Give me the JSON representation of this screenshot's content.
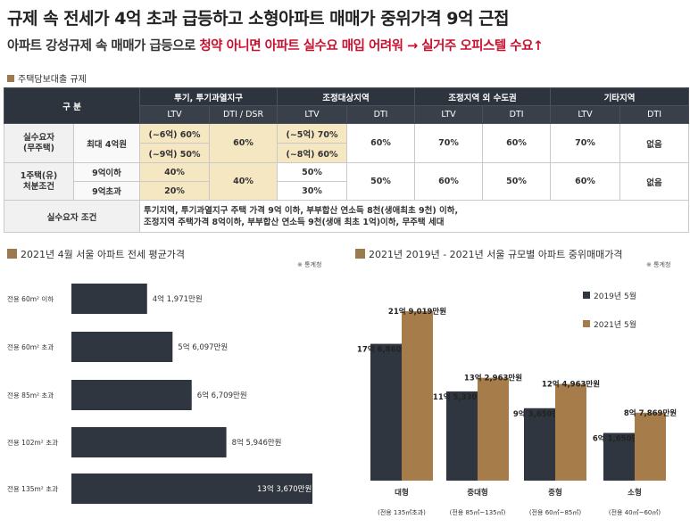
{
  "title": "규제 속 전세가 4억 초과 급등하고 소형아파트 매매가 중위가격 9억 근접",
  "subtitle": {
    "part1": "아파트 강성규제 속 매매가 급등으로 ",
    "part2": "청약 아니면 아파트 실수요 매입 어려워",
    "part3": "  → 실거주 오피스텔 수요↑"
  },
  "section_table": "주택담보대출 규제",
  "table": {
    "h_gubun": "구 분",
    "groups": [
      "투기, 투기과열지구",
      "조정대상지역",
      "조정지역 외 수도권",
      "기타지역"
    ],
    "sub": [
      "LTV",
      "DTI / DSR",
      "LTV",
      "DTI",
      "LTV",
      "DTI",
      "LTV",
      "DTI"
    ],
    "r1_label": "실수요자\n(무주택)",
    "r1_sub": "최대 4억원",
    "r1a_ltv1": "(~6억) 60%",
    "r1b_ltv1": "(~9억) 50%",
    "r1_dti1": "60%",
    "r1a_ltv2": "(~5억) 70%",
    "r1b_ltv2": "(~8억) 60%",
    "r1_dti2": "60%",
    "r1_ltv3": "70%",
    "r1_dti3": "60%",
    "r1_ltv4": "70%",
    "r1_dti4": "없음",
    "r2_label": "1주택(유)\n처분조건",
    "r2a_sub": "9억이하",
    "r2b_sub": "9억초과",
    "r2a_ltv1": "40%",
    "r2b_ltv1": "20%",
    "r2_dti1": "40%",
    "r2a_ltv2": "50%",
    "r2b_ltv2": "30%",
    "r2_dti2": "50%",
    "r2_ltv3": "60%",
    "r2_dti3": "50%",
    "r2_ltv4": "60%",
    "r2_dti4": "없음",
    "cond_label": "실수요자 조건",
    "cond_line1": "투기지역, 투기과열지구 주택 가격 9억 이하, 부부합산 연소득 8천(생애최초 9천) 이하,",
    "cond_line2": "조정지역 주택가격 8억이하, 부부합산 연소득 9천(생애 최초 1억)이하, 무주택 세대"
  },
  "chart_data": [
    {
      "type": "bar",
      "orientation": "horizontal",
      "title": "2021년 4월 서울 아파트 전세 평균가격",
      "note": "※ 통계청",
      "categories": [
        "전용 60m² 이하",
        "전용 60m² 초과",
        "전용 85m² 초과",
        "전용 102m² 초과",
        "전용 135m² 초과"
      ],
      "values": [
        41971,
        56097,
        66709,
        85946,
        133670
      ],
      "labels": [
        "4억 1,971만원",
        "5억 6,097만원",
        "6억 6,709만원",
        "8억 5,946만원",
        "13억 3,670만원"
      ],
      "unit": "만원",
      "colors": {
        "bar": "#30363f"
      }
    },
    {
      "type": "bar",
      "title": "2021년 2019년 - 2021년 서울 규모별 아파트 중위매매가격",
      "note": "※ 통계청",
      "categories": [
        "대형",
        "중대형",
        "중형",
        "소형"
      ],
      "category_sub": [
        "(전용 135㎡초과)",
        "(전용 85㎡~135㎡)",
        "(전용 60㎡~85㎡)",
        "(전용 40㎡~60㎡)"
      ],
      "series": [
        {
          "name": "2019년 5월",
          "values": [
            176860,
            115330,
            93650,
            61650
          ],
          "labels": [
            "17억 6,860만원",
            "11억 5,330만원",
            "9억 3,650만원",
            "6억 1,650만원"
          ],
          "color": "#30363f"
        },
        {
          "name": "2021년 5월",
          "values": [
            219019,
            132963,
            124963,
            87869
          ],
          "labels": [
            "21억 9,019만원",
            "13억 2,963만원",
            "12억 4,963만원",
            "8억 7,869만원"
          ],
          "color": "#a77c4b"
        }
      ],
      "unit": "만원",
      "legend": "right"
    }
  ]
}
